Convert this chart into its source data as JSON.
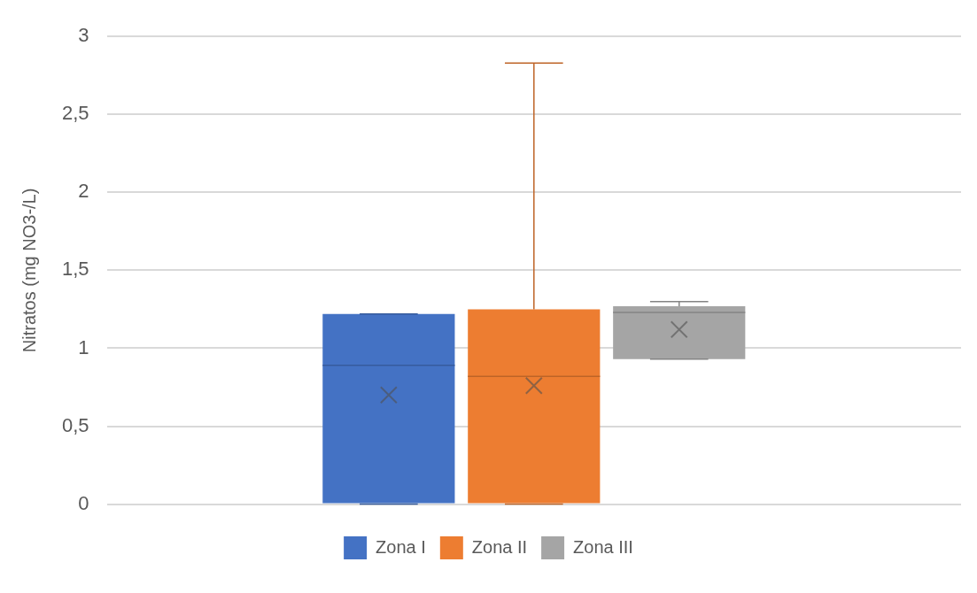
{
  "chart_data": {
    "type": "box",
    "categories": [
      null
    ],
    "ylabel": "Nitratos (mg NO3-/L)",
    "ylim": [
      0,
      3
    ],
    "yticks": [
      0,
      {
        "value": 0.5,
        "label": "0,5"
      },
      1,
      {
        "value": 1.5,
        "label": "1,5"
      },
      2,
      {
        "value": 2.5,
        "label": "2,5"
      },
      3
    ],
    "grid": "y",
    "legend": "bottom",
    "marker": "cross",
    "series": [
      {
        "name": "Zona I",
        "color": "#4472c4",
        "boxes": [
          {
            "low": 0,
            "q1": 0,
            "median": 0.89,
            "q3": 1.22,
            "high": 1.22,
            "mean": 0.7
          }
        ]
      },
      {
        "name": "Zona II",
        "color": "#ed7d31",
        "boxes": [
          {
            "low": 0,
            "q1": 0,
            "median": 0.82,
            "q3": 1.25,
            "high": 2.83,
            "mean": 0.76
          }
        ]
      },
      {
        "name": "Zona III",
        "color": "#a5a5a5",
        "boxes": [
          {
            "low": 0.93,
            "q1": 0.93,
            "median": 1.23,
            "q3": 1.27,
            "high": 1.3,
            "mean": 1.12
          }
        ]
      }
    ]
  }
}
